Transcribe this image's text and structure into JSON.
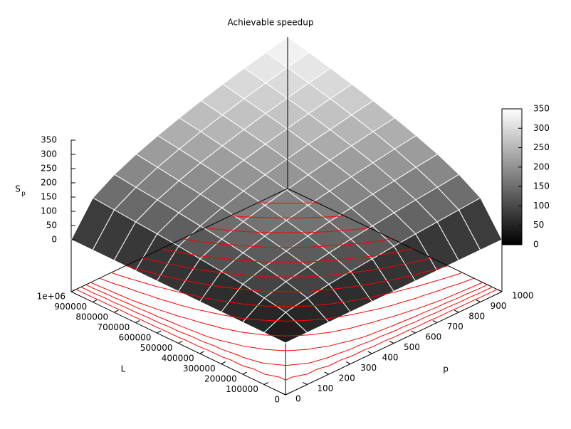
{
  "chart_data": {
    "type": "surface",
    "title": "Achievable speedup",
    "xlabel": "p",
    "ylabel": "L",
    "zlabel": "S",
    "zlabel_subscript": "p",
    "x": [
      0,
      100,
      200,
      300,
      400,
      500,
      600,
      700,
      800,
      900,
      1000
    ],
    "y": [
      0,
      100000,
      200000,
      300000,
      400000,
      500000,
      600000,
      700000,
      800000,
      900000,
      1000000
    ],
    "z": [
      [
        0,
        0,
        0,
        0,
        0,
        0,
        0,
        0,
        0,
        0,
        0
      ],
      [
        0,
        35,
        49,
        61,
        70,
        78,
        86,
        93,
        99,
        105,
        111
      ],
      [
        0,
        49,
        70,
        86,
        99,
        111,
        121,
        131,
        140,
        148,
        157
      ],
      [
        0,
        61,
        86,
        105,
        121,
        136,
        148,
        160,
        171,
        182,
        192
      ],
      [
        0,
        70,
        99,
        121,
        140,
        157,
        171,
        185,
        198,
        210,
        221
      ],
      [
        0,
        78,
        111,
        136,
        157,
        175,
        192,
        207,
        221,
        235,
        247
      ],
      [
        0,
        86,
        121,
        148,
        171,
        192,
        210,
        227,
        242,
        257,
        271
      ],
      [
        0,
        93,
        131,
        160,
        185,
        207,
        227,
        245,
        262,
        278,
        293
      ],
      [
        0,
        99,
        140,
        171,
        198,
        221,
        242,
        262,
        280,
        297,
        313
      ],
      [
        0,
        105,
        148,
        182,
        210,
        235,
        257,
        278,
        297,
        315,
        332
      ],
      [
        0,
        111,
        157,
        192,
        221,
        247,
        271,
        293,
        313,
        332,
        350
      ]
    ],
    "xlim": [
      0,
      1000
    ],
    "ylim": [
      0,
      1000000
    ],
    "zlim": [
      0,
      350
    ],
    "xticks": [
      0,
      100,
      200,
      300,
      400,
      500,
      600,
      700,
      800,
      900,
      1000
    ],
    "yticks": [
      0,
      100000,
      200000,
      300000,
      400000,
      500000,
      600000,
      700000,
      800000,
      900000,
      {
        "value": 1000000,
        "label": "1e+06"
      }
    ],
    "zticks": [
      0,
      50,
      100,
      150,
      200,
      250,
      300,
      350
    ],
    "contour_levels": [
      25,
      50,
      75,
      100,
      125,
      150,
      175,
      200,
      225,
      250,
      275,
      300,
      325
    ],
    "contour_color": "#ff0000",
    "cblim": [
      0,
      350
    ],
    "cbticks": [
      0,
      50,
      100,
      150,
      200,
      250,
      300,
      350
    ]
  }
}
